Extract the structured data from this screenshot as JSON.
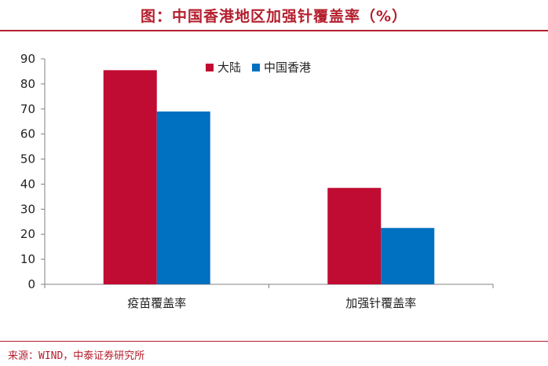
{
  "title": "图：中国香港地区加强针覆盖率（%）",
  "source": "来源：WIND，中泰证券研究所",
  "colors": {
    "accent": "#b41e2d",
    "series_0": "#c00b32",
    "series_1": "#0070c0"
  },
  "chart_data": {
    "type": "bar",
    "categories": [
      "疫苗覆盖率",
      "加强针覆盖率"
    ],
    "series": [
      {
        "name": "大陆",
        "values": [
          85.5,
          38.5
        ]
      },
      {
        "name": "中国香港",
        "values": [
          69,
          22.5
        ]
      }
    ],
    "ylim": [
      0,
      90
    ],
    "yticks": [
      0,
      10,
      20,
      30,
      40,
      50,
      60,
      70,
      80,
      90
    ],
    "grid": false,
    "legend": "top-center"
  }
}
